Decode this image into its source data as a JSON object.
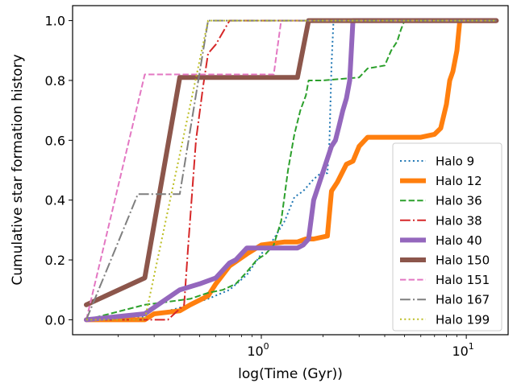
{
  "chart_data": {
    "type": "line",
    "xlabel": "log(Time (Gyr))",
    "ylabel": "Cumulative star formation history",
    "xscale": "log",
    "xlim": [
      0.12,
      16
    ],
    "ylim": [
      -0.05,
      1.05
    ],
    "yticks": [
      0.0,
      0.2,
      0.4,
      0.6,
      0.8,
      1.0
    ],
    "ytick_labels": [
      "0.0",
      "0.2",
      "0.4",
      "0.6",
      "0.8",
      "1.0"
    ],
    "xticks": [
      1,
      10
    ],
    "xtick_labels": [
      {
        "base": "10",
        "exp": "0"
      },
      {
        "base": "10",
        "exp": "1"
      }
    ],
    "grid": false,
    "legend_position": "lower-right",
    "series": [
      {
        "name": "Halo 9",
        "color": "#1f77b4",
        "style": "dotted",
        "width": 2,
        "x": [
          0.14,
          0.27,
          0.4,
          0.55,
          0.7,
          0.85,
          1.0,
          1.15,
          1.3,
          1.45,
          1.6,
          1.8,
          1.95,
          2.05,
          2.1,
          2.15,
          2.2,
          2.25,
          2.3,
          14
        ],
        "y": [
          0.0,
          0.01,
          0.04,
          0.07,
          0.1,
          0.15,
          0.22,
          0.27,
          0.33,
          0.41,
          0.43,
          0.47,
          0.49,
          0.49,
          0.49,
          0.6,
          0.85,
          1.0,
          1.0,
          1.0
        ]
      },
      {
        "name": "Halo 12",
        "color": "#ff7f0e",
        "style": "solid",
        "width": 6,
        "x": [
          0.14,
          0.27,
          0.3,
          0.4,
          0.45,
          0.55,
          0.6,
          0.7,
          0.85,
          1.0,
          1.3,
          1.5,
          1.65,
          1.8,
          2.1,
          2.2,
          2.35,
          2.6,
          2.8,
          3.0,
          3.3,
          4.0,
          5.0,
          6.0,
          7.0,
          7.5,
          8.0,
          8.3,
          8.6,
          9.0,
          9.3,
          14
        ],
        "y": [
          0.0,
          0.0,
          0.02,
          0.03,
          0.05,
          0.08,
          0.12,
          0.18,
          0.22,
          0.25,
          0.26,
          0.26,
          0.27,
          0.27,
          0.28,
          0.43,
          0.46,
          0.52,
          0.53,
          0.58,
          0.61,
          0.61,
          0.61,
          0.61,
          0.62,
          0.64,
          0.72,
          0.8,
          0.83,
          0.9,
          1.0,
          1.0
        ]
      },
      {
        "name": "Halo 36",
        "color": "#2ca02c",
        "style": "dashed",
        "width": 2,
        "x": [
          0.14,
          0.27,
          0.35,
          0.45,
          0.55,
          0.65,
          0.75,
          0.85,
          0.95,
          1.05,
          1.15,
          1.25,
          1.35,
          1.45,
          1.55,
          1.65,
          1.7,
          1.75,
          1.85,
          2.0,
          3.0,
          3.3,
          4.0,
          4.3,
          4.6,
          4.8,
          5.0,
          14
        ],
        "y": [
          0.0,
          0.05,
          0.06,
          0.07,
          0.09,
          0.1,
          0.12,
          0.16,
          0.2,
          0.22,
          0.25,
          0.33,
          0.5,
          0.62,
          0.7,
          0.75,
          0.8,
          0.8,
          0.8,
          0.8,
          0.81,
          0.84,
          0.85,
          0.9,
          0.93,
          0.97,
          1.0,
          1.0
        ]
      },
      {
        "name": "Halo 38",
        "color": "#d62728",
        "style": "dashdot",
        "width": 2,
        "x": [
          0.14,
          0.27,
          0.35,
          0.42,
          0.44,
          0.48,
          0.52,
          0.55,
          0.6,
          0.7,
          14
        ],
        "y": [
          0.0,
          0.0,
          0.0,
          0.05,
          0.25,
          0.6,
          0.78,
          0.89,
          0.92,
          1.0,
          1.0
        ]
      },
      {
        "name": "Halo 40",
        "color": "#9467bd",
        "style": "solid",
        "width": 6,
        "x": [
          0.14,
          0.27,
          0.4,
          0.5,
          0.6,
          0.7,
          0.75,
          0.85,
          1.5,
          1.6,
          1.7,
          1.8,
          2.2,
          2.3,
          2.4,
          2.5,
          2.6,
          2.7,
          2.8,
          14
        ],
        "y": [
          0.0,
          0.02,
          0.1,
          0.12,
          0.14,
          0.19,
          0.2,
          0.24,
          0.24,
          0.25,
          0.27,
          0.4,
          0.58,
          0.6,
          0.65,
          0.7,
          0.74,
          0.8,
          1.0,
          1.0
        ]
      },
      {
        "name": "Halo 150",
        "color": "#8c564b",
        "style": "solid",
        "width": 6,
        "x": [
          0.14,
          0.27,
          0.4,
          1.5,
          1.7,
          14
        ],
        "y": [
          0.05,
          0.14,
          0.81,
          0.81,
          1.0,
          1.0
        ]
      },
      {
        "name": "Halo 151",
        "color": "#e377c2",
        "style": "dashed",
        "width": 2,
        "x": [
          0.14,
          0.27,
          1.15,
          1.25,
          14
        ],
        "y": [
          0.0,
          0.82,
          0.82,
          1.0,
          1.0
        ]
      },
      {
        "name": "Halo 167",
        "color": "#7f7f7f",
        "style": "dashdot",
        "width": 2,
        "x": [
          0.14,
          0.25,
          0.4,
          0.55,
          14
        ],
        "y": [
          0.0,
          0.42,
          0.42,
          1.0,
          1.0
        ]
      },
      {
        "name": "Halo 199",
        "color": "#bcbd22",
        "style": "dotted",
        "width": 2,
        "x": [
          0.14,
          0.27,
          0.55,
          14
        ],
        "y": [
          0.0,
          0.0,
          1.0,
          1.0
        ]
      }
    ]
  }
}
